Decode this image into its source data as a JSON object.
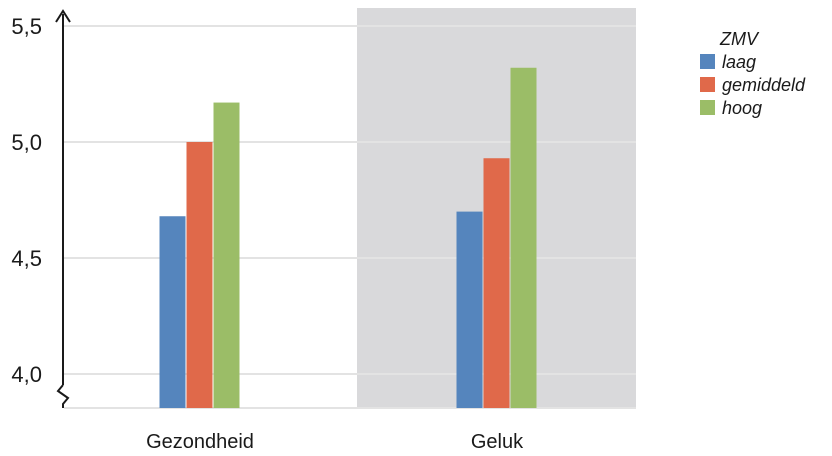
{
  "chart_data": {
    "type": "bar",
    "categories": [
      "Gezondheid",
      "Geluk"
    ],
    "series": [
      {
        "name": "laag",
        "values": [
          4.68,
          4.7
        ],
        "color": "#5585bd"
      },
      {
        "name": "gemiddeld",
        "values": [
          5.0,
          4.93
        ],
        "color": "#e0694a"
      },
      {
        "name": "hoog",
        "values": [
          5.17,
          5.32
        ],
        "color": "#9bbd67"
      }
    ],
    "ylim": [
      3.93,
      5.55
    ],
    "yticks": [
      {
        "value": 4.0,
        "label": "4,0"
      },
      {
        "value": 4.5,
        "label": "4,5"
      },
      {
        "value": 5.0,
        "label": "5,0"
      },
      {
        "value": 5.5,
        "label": "5,5"
      }
    ],
    "legend": {
      "title": "ZMV",
      "position": "top-right"
    },
    "axis_break": true,
    "grid": true,
    "shaded_category": "Geluk",
    "colors": {
      "shade": "#d9d9db",
      "grid": "#e3e3e3",
      "axis": "#1a1a1a"
    }
  }
}
